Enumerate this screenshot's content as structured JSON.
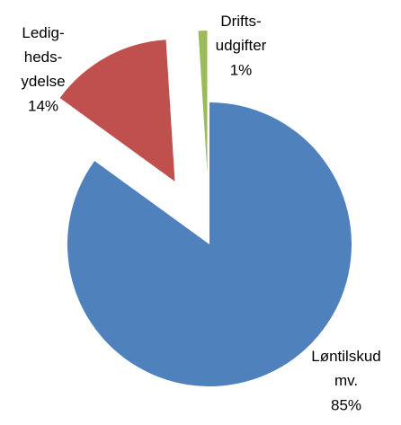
{
  "chart_data": {
    "type": "pie",
    "categories": [
      "Løntilskud mv.",
      "Ledig- heds- ydelse",
      "Drifts- udgifter"
    ],
    "values": [
      85,
      14,
      1
    ],
    "value_labels": [
      "85%",
      "14%",
      "1%"
    ],
    "colors": [
      "#4f81bd",
      "#c0504d",
      "#9bbb59"
    ],
    "exploded": [
      false,
      true,
      true
    ]
  }
}
